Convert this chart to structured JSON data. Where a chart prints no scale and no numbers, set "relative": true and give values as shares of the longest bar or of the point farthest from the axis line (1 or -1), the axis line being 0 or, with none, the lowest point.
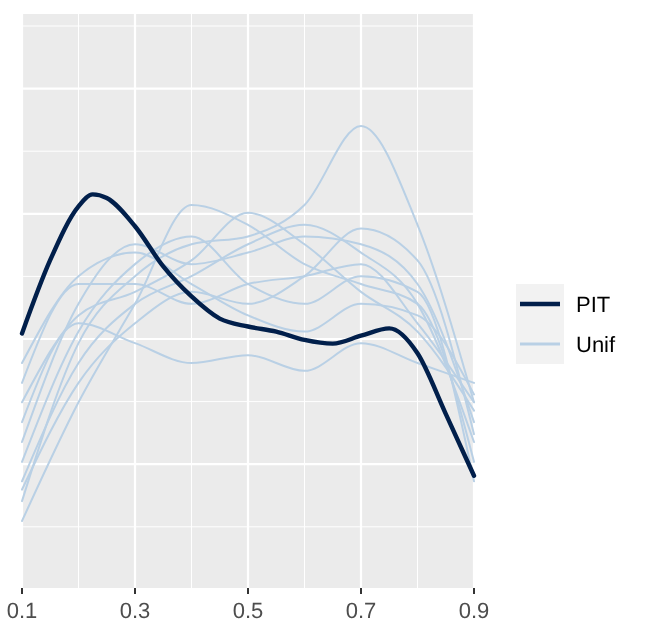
{
  "chart_data": {
    "type": "line",
    "relative": true,
    "x": [
      0.1,
      0.2,
      0.3,
      0.4,
      0.5,
      0.6,
      0.7,
      0.8,
      0.9
    ],
    "xlim": [
      0.1,
      0.9
    ],
    "xticks": [
      0.1,
      0.3,
      0.5,
      0.7,
      0.9
    ],
    "grid": true,
    "legend": "right",
    "tick_labels": "x",
    "line_style": "solid",
    "marker": "none",
    "series": [
      {
        "name": "Unif",
        "color": "#b9d0e5",
        "values": [
          0.188,
          0.53,
          0.675,
          0.744,
          0.761,
          0.829,
          1.0,
          0.786,
          0.402
        ]
      },
      {
        "color": "#b9d0e5",
        "values": [
          0.145,
          0.402,
          0.615,
          0.829,
          0.786,
          0.701,
          0.658,
          0.615,
          0.273
        ]
      },
      {
        "color": "#b9d0e5",
        "values": [
          0.316,
          0.615,
          0.744,
          0.701,
          0.726,
          0.761,
          0.744,
          0.658,
          0.359
        ]
      },
      {
        "color": "#b9d0e5",
        "values": [
          0.444,
          0.658,
          0.658,
          0.615,
          0.658,
          0.675,
          0.701,
          0.573,
          0.402
        ]
      },
      {
        "color": "#b9d0e5",
        "values": [
          0.231,
          0.487,
          0.615,
          0.675,
          0.744,
          0.786,
          0.726,
          0.615,
          0.316
        ]
      },
      {
        "color": "#b9d0e5",
        "values": [
          0.359,
          0.573,
          0.53,
          0.487,
          0.504,
          0.47,
          0.53,
          0.487,
          0.444
        ]
      },
      {
        "color": "#b9d0e5",
        "values": [
          0.273,
          0.555,
          0.701,
          0.761,
          0.658,
          0.615,
          0.675,
          0.641,
          0.231
        ]
      },
      {
        "color": "#b9d0e5",
        "values": [
          0.402,
          0.59,
          0.641,
          0.709,
          0.812,
          0.744,
          0.641,
          0.555,
          0.384
        ]
      },
      {
        "color": "#b9d0e5",
        "values": [
          0.213,
          0.444,
          0.573,
          0.641,
          0.615,
          0.675,
          0.778,
          0.709,
          0.333
        ]
      },
      {
        "color": "#b9d0e5",
        "values": [
          0.487,
          0.675,
          0.726,
          0.658,
          0.59,
          0.555,
          0.615,
          0.59,
          0.419
        ]
      },
      {
        "name": "PIT",
        "color": "#011f4b",
        "x": [
          0.1,
          0.15,
          0.2,
          0.225,
          0.25,
          0.3,
          0.35,
          0.4,
          0.45,
          0.5,
          0.55,
          0.6,
          0.65,
          0.7,
          0.75,
          0.8,
          0.85,
          0.9
        ],
        "values": [
          0.551,
          0.71,
          0.826,
          0.852,
          0.844,
          0.783,
          0.696,
          0.631,
          0.583,
          0.566,
          0.555,
          0.537,
          0.529,
          0.546,
          0.562,
          0.508,
          0.377,
          0.243
        ]
      }
    ]
  }
}
